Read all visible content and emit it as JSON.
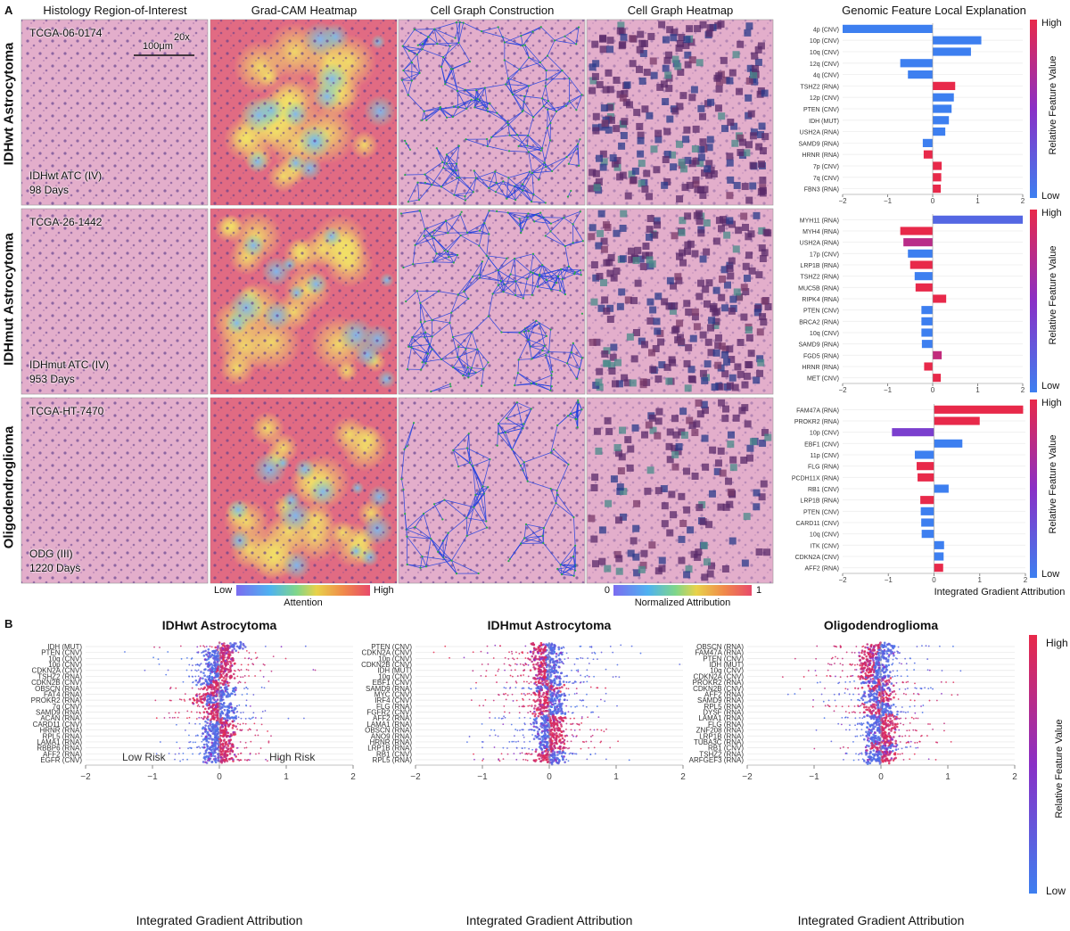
{
  "panel_a": {
    "letter": "A",
    "col_titles": [
      "Histology Region-of-Interest",
      "Grad-CAM Heatmap",
      "Cell Graph Construction",
      "Cell Graph Heatmap",
      "Genomic Feature Local Explanation"
    ],
    "rows": [
      {
        "label": "IDHwt Astrocytoma",
        "case_id": "TCGA-06-0174",
        "diagnosis": "IDHwt ATC (IV)",
        "days": "98 Days",
        "magnification": "20x",
        "scale": "100μm"
      },
      {
        "label": "IDHmut Astrocytoma",
        "case_id": "TCGA-26-1442",
        "diagnosis": "IDHmut ATC (IV)",
        "days": "953 Days"
      },
      {
        "label": "Oligodendroglioma",
        "case_id": "TCGA-HT-7470",
        "diagnosis": "ODG (III)",
        "days": "1220 Days"
      }
    ],
    "attention_colorbar": {
      "low": "Low",
      "high": "High",
      "label": "Attention"
    },
    "attribution_colorbar": {
      "low": "0",
      "high": "1",
      "label": "Normalized Attribution"
    },
    "feature_colorbar": {
      "high": "High",
      "low": "Low",
      "label": "Relative Feature Value"
    },
    "xlabel": "Integrated Gradient Attribution"
  },
  "panel_b": {
    "letter": "B",
    "xlabel": "Integrated Gradient Attribution",
    "low_risk": "Low Risk",
    "high_risk": "High Risk",
    "colorbar": {
      "high": "High",
      "low": "Low",
      "label": "Relative Feature Value"
    }
  },
  "colors": {
    "high": "#e8294a",
    "mid": "#8a2fc6",
    "low": "#3d7ff0",
    "tissue": "#e3aecb"
  },
  "chart_data": [
    {
      "type": "bar",
      "title": "Genomic Feature Local Explanation — IDHwt Astrocytoma",
      "categories": [
        "4p (CNV)",
        "10p (CNV)",
        "10q (CNV)",
        "12q (CNV)",
        "4q (CNV)",
        "TSHZ2 (RNA)",
        "12p (CNV)",
        "PTEN (CNV)",
        "IDH (MUT)",
        "USH2A (RNA)",
        "SAMD9 (RNA)",
        "HRNR (RNA)",
        "7p (CNV)",
        "7q (CNV)",
        "FBN3 (RNA)"
      ],
      "values": [
        -2.0,
        1.08,
        0.85,
        -0.72,
        -0.55,
        0.5,
        0.47,
        0.42,
        0.36,
        0.28,
        -0.22,
        -0.2,
        0.2,
        0.19,
        0.18
      ],
      "feature_values": [
        0.0,
        0.0,
        0.0,
        0.0,
        0.0,
        1.0,
        0.0,
        0.0,
        0.0,
        0.0,
        0.0,
        1.0,
        1.0,
        1.0,
        1.0
      ],
      "xlim": [
        -2,
        2
      ],
      "xticks": [
        -2,
        -1,
        0,
        1,
        2
      ]
    },
    {
      "type": "bar",
      "title": "Genomic Feature Local Explanation — IDHmut Astrocytoma",
      "categories": [
        "MYH11 (RNA)",
        "MYH4 (RNA)",
        "USH2A (RNA)",
        "17p (CNV)",
        "LRP1B (RNA)",
        "TSHZ2 (RNA)",
        "MUC5B (RNA)",
        "RIPK4 (RNA)",
        "PTEN (CNV)",
        "BRCA2 (RNA)",
        "10q (CNV)",
        "SAMD9 (RNA)",
        "FGD5 (RNA)",
        "HRNR (RNA)",
        "MET (CNV)"
      ],
      "values": [
        2.0,
        -0.72,
        -0.65,
        -0.55,
        -0.5,
        -0.4,
        -0.38,
        0.3,
        -0.25,
        -0.25,
        -0.25,
        -0.24,
        0.2,
        -0.19,
        0.18
      ],
      "feature_values": [
        0.15,
        1.0,
        0.75,
        0.0,
        1.0,
        0.0,
        1.0,
        1.0,
        0.0,
        0.0,
        0.0,
        0.0,
        0.8,
        1.0,
        1.0
      ],
      "xlim": [
        -2,
        2
      ],
      "xticks": [
        -2,
        -1,
        0,
        1,
        2
      ]
    },
    {
      "type": "bar",
      "title": "Genomic Feature Local Explanation — Oligodendroglioma",
      "categories": [
        "FAM47A (RNA)",
        "PROKR2 (RNA)",
        "10p (CNV)",
        "EBF1 (CNV)",
        "11p (CNV)",
        "FLG (RNA)",
        "PCDH11X (RNA)",
        "RB1 (CNV)",
        "LRP1B (RNA)",
        "PTEN (CNV)",
        "CARD11 (CNV)",
        "10q (CNV)",
        "ITK (CNV)",
        "CDKN2A (CNV)",
        "AFF2 (RNA)"
      ],
      "values": [
        1.95,
        1.0,
        -0.92,
        0.62,
        -0.42,
        -0.38,
        -0.36,
        0.32,
        -0.3,
        -0.29,
        -0.28,
        -0.27,
        0.22,
        0.21,
        0.2
      ],
      "feature_values": [
        1.0,
        1.0,
        0.4,
        0.0,
        0.0,
        1.0,
        1.0,
        0.0,
        1.0,
        0.0,
        0.0,
        0.0,
        0.0,
        0.0,
        1.0
      ],
      "xlim": [
        -2,
        2
      ],
      "xticks": [
        -2,
        -1,
        0,
        1,
        2
      ]
    },
    {
      "type": "scatter",
      "title": "IDHwt Astrocytoma",
      "categories": [
        "IDH (MUT)",
        "PTEN (CNV)",
        "10q (CNV)",
        "10p (CNV)",
        "CDKN2A (CNV)",
        "TSHZ2 (RNA)",
        "CDKN2B (CNV)",
        "OBSCN (RNA)",
        "FAT4 (RNA)",
        "PROKR2 (RNA)",
        "7q (CNV)",
        "SAMD9 (RNA)",
        "ACAN (RNA)",
        "CARD11 (CNV)",
        "HRNR (RNA)",
        "RPL5 (RNA)",
        "LAMA1 (RNA)",
        "RBBP6 (RNA)",
        "AFF2 (RNA)",
        "EGFR (CNV)"
      ],
      "centers": [
        0.15,
        0.0,
        0.0,
        0.0,
        -0.05,
        0.0,
        -0.1,
        0.0,
        0.0,
        -0.2,
        0.0,
        0.0,
        0.0,
        0.0,
        0.0,
        0.0,
        0.0,
        0.0,
        0.0,
        0.0
      ],
      "spreads": [
        1.0,
        0.9,
        0.9,
        0.9,
        1.0,
        0.6,
        0.6,
        0.6,
        0.6,
        0.7,
        0.6,
        0.8,
        0.9,
        0.6,
        0.6,
        0.6,
        0.6,
        0.6,
        0.8,
        1.0
      ],
      "low_feature_side": [
        1,
        -1,
        -1,
        -1,
        -1,
        -1,
        -1,
        1,
        1,
        1,
        1,
        1,
        1,
        -1,
        -1,
        -1,
        -1,
        -1,
        -1,
        -1
      ],
      "xlim": [
        -2,
        2
      ],
      "xticks": [
        -2,
        -1,
        0,
        1,
        2
      ]
    },
    {
      "type": "scatter",
      "title": "IDHmut Astrocytoma",
      "categories": [
        "PTEN (CNV)",
        "CDKN2A (CNV)",
        "10p (CNV)",
        "CDKN2B (CNV)",
        "IDH (MUT)",
        "10q (CNV)",
        "EBF1 (CNV)",
        "SAMD9 (RNA)",
        "MYC (CNV)",
        "IRF4 (CNV)",
        "FLG (RNA)",
        "FGFR2 (CNV)",
        "AFF2 (RNA)",
        "LAMA1 (RNA)",
        "OBSCN (RNA)",
        "ANO9 (RNA)",
        "HRNR (RNA)",
        "LRP1B (RNA)",
        "RB1 (CNV)",
        "RPL5 (RNA)"
      ],
      "centers": [
        -0.05,
        -0.05,
        -0.05,
        -0.05,
        -0.05,
        -0.05,
        0.0,
        0.0,
        0.0,
        0.0,
        0.0,
        0.0,
        0.0,
        0.0,
        0.0,
        0.0,
        0.0,
        0.0,
        0.0,
        0.0
      ],
      "spreads": [
        1.2,
        1.2,
        1.2,
        1.2,
        1.2,
        1.1,
        1.0,
        1.0,
        1.0,
        1.0,
        1.0,
        1.0,
        1.0,
        1.0,
        1.0,
        1.0,
        1.0,
        1.0,
        1.0,
        1.0
      ],
      "low_feature_side": [
        1,
        1,
        1,
        1,
        1,
        1,
        1,
        -1,
        1,
        1,
        1,
        1,
        -1,
        -1,
        -1,
        -1,
        -1,
        -1,
        1,
        1
      ],
      "xlim": [
        -2,
        2
      ],
      "xticks": [
        -2,
        -1,
        0,
        1,
        2
      ]
    },
    {
      "type": "scatter",
      "title": "Oligodendroglioma",
      "categories": [
        "OBSCN (RNA)",
        "FAM47A (RNA)",
        "PTEN (CNV)",
        "IDH (MUT)",
        "10q (CNV)",
        "CDKN2A (CNV)",
        "PROKR2 (RNA)",
        "CDKN2B (CNV)",
        "AFF2 (RNA)",
        "SAMD9 (RNA)",
        "RPL5 (RNA)",
        "DYSF (RNA)",
        "LAMA1 (RNA)",
        "FLG (RNA)",
        "ZNF208 (RNA)",
        "LRP1B (RNA)",
        "TUBA3C (RNA)",
        "RB1 (CNV)",
        "TSHZ2 (RNA)",
        "ARFGEF3 (RNA)"
      ],
      "centers": [
        0.0,
        -0.05,
        -0.1,
        -0.1,
        -0.1,
        -0.1,
        -0.05,
        -0.05,
        -0.05,
        -0.05,
        -0.05,
        0.0,
        0.0,
        0.0,
        0.0,
        0.0,
        0.0,
        0.0,
        0.0,
        0.0
      ],
      "spreads": [
        1.0,
        0.5,
        1.0,
        1.0,
        1.0,
        1.0,
        1.0,
        1.0,
        1.0,
        0.8,
        0.8,
        0.8,
        0.8,
        0.8,
        0.8,
        0.8,
        0.8,
        0.6,
        0.6,
        0.6
      ],
      "low_feature_side": [
        1,
        1,
        1,
        1,
        1,
        1,
        -1,
        1,
        -1,
        -1,
        1,
        1,
        -1,
        -1,
        -1,
        -1,
        -1,
        1,
        -1,
        -1
      ],
      "xlim": [
        -2,
        2
      ],
      "xticks": [
        -2,
        -1,
        0,
        1,
        2
      ]
    }
  ]
}
